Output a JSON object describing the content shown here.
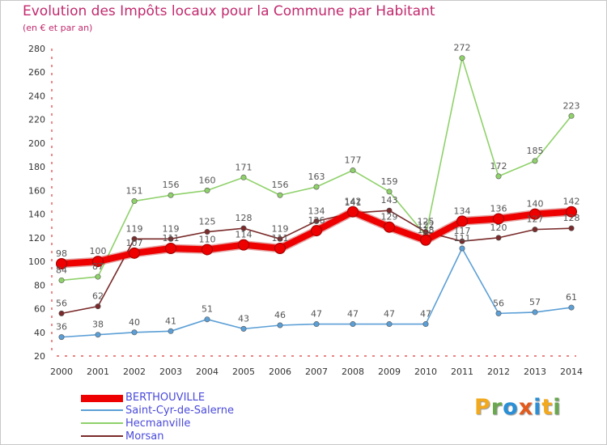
{
  "header": {
    "title": "Evolution des Impôts locaux pour la Commune par Habitant",
    "subtitle": "(en € et par an)"
  },
  "logo": {
    "text": "Proxiti",
    "colors": [
      "#f2a91d",
      "#6aa84f",
      "#2a8fd6",
      "#e35a1c",
      "#2a8fd6",
      "#f2a91d",
      "#6aa84f"
    ]
  },
  "chart_data": {
    "type": "line",
    "title": "Evolution des Impôts locaux pour la Commune par Habitant",
    "subtitle": "(en € et par an)",
    "xlabel": "",
    "ylabel": "",
    "x": [
      "2000",
      "2001",
      "2002",
      "2003",
      "2004",
      "2005",
      "2006",
      "2007",
      "2008",
      "2009",
      "2010",
      "2011",
      "2012",
      "2013",
      "2014"
    ],
    "ylim": [
      20,
      280
    ],
    "yticks": [
      "20",
      "40",
      "60",
      "80",
      "100",
      "120",
      "140",
      "160",
      "180",
      "200",
      "220",
      "240",
      "260",
      "280"
    ],
    "grid": false,
    "legend_position": "bottom-left",
    "series": [
      {
        "name": "Hecmanville",
        "color": "#8fd16a",
        "values": [
          84,
          87,
          151,
          156,
          160,
          171,
          156,
          163,
          177,
          159,
          122,
          272,
          172,
          185,
          223
        ],
        "labels": [
          "84",
          "87",
          "151",
          "156",
          "160",
          "171",
          "156",
          "163",
          "177",
          "159",
          "122",
          "272",
          "172",
          "185",
          "223"
        ]
      },
      {
        "name": "Morsan",
        "color": "#7a2a2a",
        "values": [
          56,
          62,
          119,
          119,
          125,
          128,
          119,
          134,
          141,
          143,
          125,
          117,
          120,
          127,
          128
        ],
        "labels": [
          "56",
          "62",
          "119",
          "119",
          "125",
          "128",
          "119",
          "134",
          "141",
          "143",
          "125",
          "117",
          "120",
          "127",
          "128"
        ]
      },
      {
        "name": "Saint-Cyr-de-Salerne",
        "color": "#5b9fd6",
        "values": [
          36,
          38,
          40,
          41,
          51,
          43,
          46,
          47,
          47,
          47,
          47,
          111,
          56,
          57,
          61
        ],
        "labels": [
          "36",
          "38",
          "40",
          "41",
          "51",
          "43",
          "46",
          "47",
          "47",
          "47",
          "47",
          "111",
          "56",
          "57",
          "61"
        ]
      },
      {
        "name": "BERTHOUVILLE",
        "color": "#ee0000",
        "values": [
          98,
          100,
          107,
          111,
          110,
          114,
          111,
          126,
          142,
          129,
          118,
          134,
          136,
          140,
          142
        ],
        "labels": [
          "98",
          "100",
          "107",
          "111",
          "110",
          "114",
          "111",
          "126",
          "142",
          "129",
          "118",
          "134",
          "136",
          "140",
          "142"
        ]
      }
    ],
    "legend": [
      "BERTHOUVILLE",
      "Saint-Cyr-de-Salerne",
      "Hecmanville",
      "Morsan"
    ]
  }
}
